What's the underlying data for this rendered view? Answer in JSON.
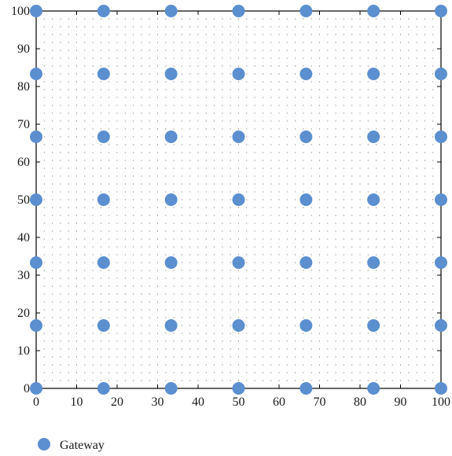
{
  "chart_data": {
    "type": "scatter",
    "title": "",
    "xlabel": "",
    "ylabel": "",
    "xlim": [
      0,
      100
    ],
    "ylim": [
      0,
      100
    ],
    "xticks": [
      0,
      10,
      20,
      30,
      40,
      50,
      60,
      70,
      80,
      90,
      100
    ],
    "yticks": [
      0,
      10,
      20,
      30,
      40,
      50,
      60,
      70,
      80,
      90,
      100
    ],
    "x_ticks_overlay": [
      0,
      16.67,
      33.33,
      50,
      66.67,
      83.33,
      100
    ],
    "y_ticks_overlay": [
      0,
      16.67,
      33.33,
      50,
      66.67,
      83.33,
      100
    ],
    "grid": "dotted",
    "legend_position": "bottom-left",
    "marker_color": "#5B8FCF",
    "series": [
      {
        "name": "Gateway",
        "x_grid": [
          0,
          16.67,
          33.33,
          50,
          66.67,
          83.33,
          100
        ],
        "y_grid": [
          0,
          16.67,
          33.33,
          50,
          66.67,
          83.33,
          100
        ]
      }
    ]
  }
}
